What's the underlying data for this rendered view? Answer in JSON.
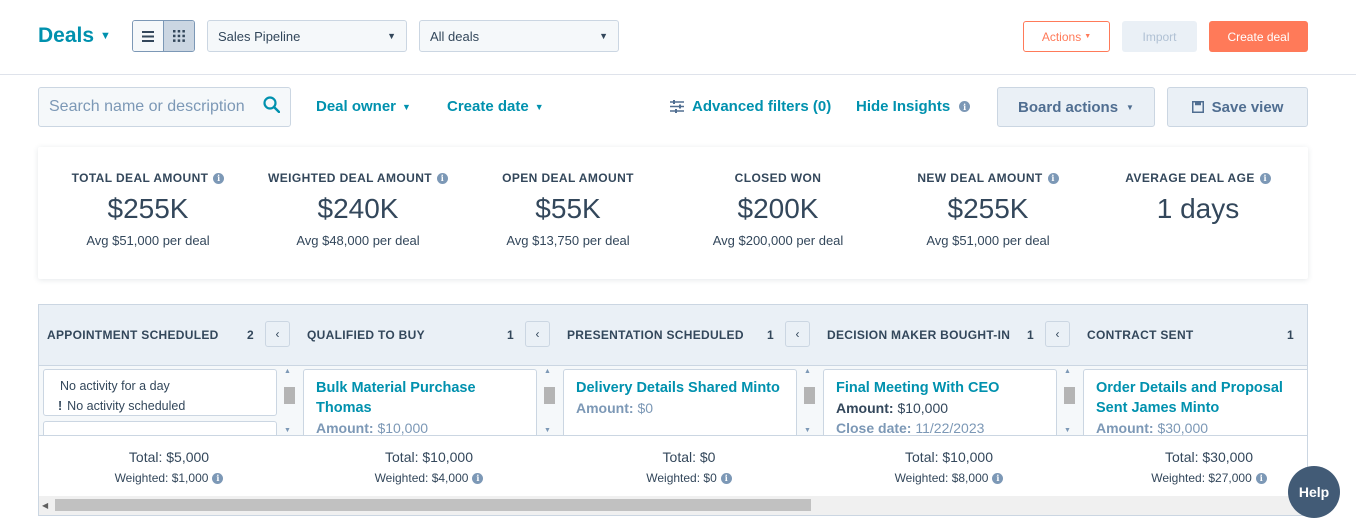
{
  "header": {
    "title": "Deals",
    "pipeline_select": "Sales Pipeline",
    "deals_filter_select": "All deals",
    "actions_label": "Actions",
    "import_label": "Import",
    "create_label": "Create deal"
  },
  "filters": {
    "search_placeholder": "Search name or description",
    "deal_owner": "Deal owner",
    "create_date": "Create date",
    "advanced_filters": "Advanced filters (0)",
    "hide_insights": "Hide Insights",
    "board_actions": "Board actions",
    "save_view": "Save view"
  },
  "insights": [
    {
      "label": "TOTAL DEAL AMOUNT",
      "value": "$255K",
      "avg": "Avg $51,000 per deal",
      "info": true
    },
    {
      "label": "WEIGHTED DEAL AMOUNT",
      "value": "$240K",
      "avg": "Avg $48,000 per deal",
      "info": true
    },
    {
      "label": "OPEN DEAL AMOUNT",
      "value": "$55K",
      "avg": "Avg $13,750 per deal",
      "info": false
    },
    {
      "label": "CLOSED WON",
      "value": "$200K",
      "avg": "Avg $200,000 per deal",
      "info": false
    },
    {
      "label": "NEW DEAL AMOUNT",
      "value": "$255K",
      "avg": "Avg $51,000 per deal",
      "info": true
    },
    {
      "label": "AVERAGE DEAL AGE",
      "value": "1 days",
      "avg": "",
      "info": true
    }
  ],
  "columns": [
    {
      "title": "APPOINTMENT SCHEDULED",
      "count": "2",
      "activity_line1": "No activity for a day",
      "activity_line2": "No activity scheduled",
      "total": "Total: $5,000",
      "weighted": "Weighted: $1,000"
    },
    {
      "title": "QUALIFIED TO BUY",
      "count": "1",
      "card_name": "Bulk Material Purchase Thomas",
      "card_line1_label": "Amount:",
      "card_line1_value": "$10,000",
      "total": "Total: $10,000",
      "weighted": "Weighted: $4,000"
    },
    {
      "title": "PRESENTATION SCHEDULED",
      "count": "1",
      "card_name": "Delivery Details Shared Minto",
      "card_line1_label": "Amount:",
      "card_line1_value": "$0",
      "total": "Total: $0",
      "weighted": "Weighted: $0"
    },
    {
      "title": "DECISION MAKER BOUGHT-IN",
      "count": "1",
      "card_name": "Final Meeting With CEO",
      "card_line1_label": "Amount:",
      "card_line1_value": "$10,000",
      "card_line2_label": "Close date:",
      "card_line2_value": "11/22/2023",
      "total": "Total: $10,000",
      "weighted": "Weighted: $8,000"
    },
    {
      "title": "CONTRACT SENT",
      "count": "1",
      "card_name": "Order Details and Proposal Sent James Minto",
      "card_line1_label": "Amount:",
      "card_line1_value": "$30,000",
      "total": "Total: $30,000",
      "weighted": "Weighted: $27,000"
    }
  ],
  "help_label": "Help",
  "colors": {
    "accent": "#0091ae",
    "orange": "#ff7a59",
    "text": "#33475b"
  }
}
